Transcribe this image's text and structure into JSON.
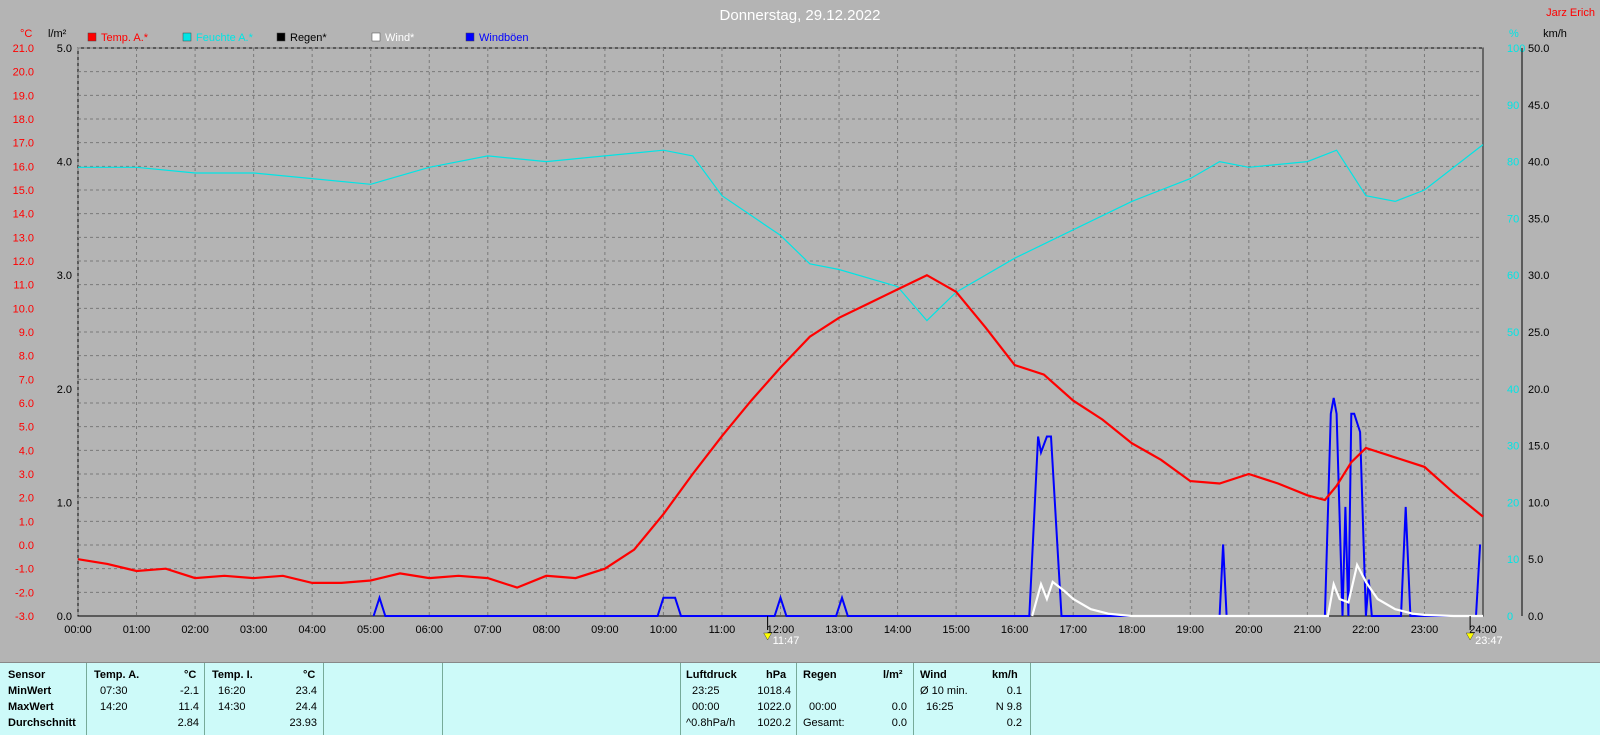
{
  "header": {
    "title": "Donnerstag, 29.12.2022",
    "author": "Jarz Erich"
  },
  "units": {
    "temp": "°C",
    "rain": "l/m²",
    "humidity": "%",
    "wind": "km/h"
  },
  "legend": [
    {
      "label": "Temp. A.*",
      "color": "#ff0000"
    },
    {
      "label": "Feuchte A.*",
      "color": "#00e5e5"
    },
    {
      "label": "Regen*",
      "color": "#000000"
    },
    {
      "label": "Wind*",
      "color": "#ffffff"
    },
    {
      "label": "Windböen",
      "color": "#0000ff"
    }
  ],
  "markers": {
    "min": "11:47",
    "max": "23:47"
  },
  "chart_data": {
    "type": "line",
    "x_ticks": [
      "00:00",
      "01:00",
      "02:00",
      "03:00",
      "04:00",
      "05:00",
      "06:00",
      "07:00",
      "08:00",
      "09:00",
      "10:00",
      "11:00",
      "12:00",
      "13:00",
      "14:00",
      "15:00",
      "16:00",
      "17:00",
      "18:00",
      "19:00",
      "20:00",
      "21:00",
      "22:00",
      "23:00",
      "24:00"
    ],
    "temp_ticks": [
      "21.0",
      "20.0",
      "19.0",
      "18.0",
      "17.0",
      "16.0",
      "15.0",
      "14.0",
      "13.0",
      "12.0",
      "11.0",
      "10.0",
      "9.0",
      "8.0",
      "7.0",
      "6.0",
      "5.0",
      "4.0",
      "3.0",
      "2.0",
      "1.0",
      "0.0",
      "-1.0",
      "-2.0",
      "-3.0"
    ],
    "rain_ticks": [
      "5.0",
      "4.0",
      "3.0",
      "2.0",
      "1.0",
      "0.0"
    ],
    "humidity_ticks": [
      "100",
      "90",
      "80",
      "70",
      "60",
      "50",
      "40",
      "30",
      "20",
      "10",
      "0"
    ],
    "wind_ticks": [
      "50.0",
      "45.0",
      "40.0",
      "35.0",
      "30.0",
      "25.0",
      "20.0",
      "15.0",
      "10.0",
      "5.0",
      "0.0"
    ],
    "temp_range": [
      -3,
      21
    ],
    "humidity_range": [
      0,
      100
    ],
    "wind_range": [
      0,
      50
    ],
    "series": [
      {
        "name": "Temp. A.*",
        "color": "#ff0000",
        "x": [
          0,
          0.5,
          1,
          1.5,
          2,
          2.5,
          3,
          3.5,
          4,
          4.5,
          5,
          5.5,
          6,
          6.5,
          7,
          7.5,
          8,
          8.5,
          9,
          9.5,
          10,
          10.5,
          11,
          11.5,
          12,
          12.5,
          13,
          13.5,
          14,
          14.5,
          15,
          15.5,
          16,
          16.5,
          17,
          17.5,
          18,
          18.5,
          19,
          19.5,
          20,
          20.5,
          21,
          21.3,
          21.5,
          21.75,
          22,
          22.5,
          23,
          23.5,
          24
        ],
        "y": [
          -0.6,
          -0.8,
          -1.1,
          -1.0,
          -1.4,
          -1.3,
          -1.4,
          -1.3,
          -1.6,
          -1.6,
          -1.5,
          -1.2,
          -1.4,
          -1.3,
          -1.4,
          -1.8,
          -1.3,
          -1.4,
          -1.0,
          -0.2,
          1.3,
          3.0,
          4.6,
          6.1,
          7.5,
          8.8,
          9.6,
          10.2,
          10.8,
          11.4,
          10.7,
          9.2,
          7.6,
          7.2,
          6.1,
          5.3,
          4.3,
          3.6,
          2.7,
          2.6,
          3.0,
          2.6,
          2.1,
          1.9,
          2.5,
          3.5,
          4.1,
          3.7,
          3.3,
          2.2,
          1.2
        ]
      },
      {
        "name": "Feuchte A.*",
        "color": "#00e5e5",
        "x": [
          0,
          1,
          2,
          3,
          4,
          5,
          6,
          7,
          8,
          9,
          10,
          10.5,
          11,
          12,
          12.5,
          13,
          14,
          14.5,
          15,
          16,
          17,
          18,
          19,
          19.5,
          20,
          21,
          21.5,
          22,
          22.5,
          23,
          24
        ],
        "y": [
          79,
          79,
          78,
          78,
          77,
          76,
          79,
          81,
          80,
          81,
          82,
          81,
          74,
          67,
          62,
          61,
          58,
          52,
          57,
          63,
          68,
          73,
          77,
          80,
          79,
          80,
          82,
          74,
          73,
          75,
          83
        ]
      },
      {
        "name": "Wind*",
        "color": "#ffffff",
        "x": [
          16.3,
          16.45,
          16.55,
          16.65,
          16.85,
          17,
          17.3,
          17.6,
          18,
          21.35,
          21.45,
          21.55,
          21.7,
          21.85,
          22,
          22.2,
          22.5,
          22.8,
          23,
          23.5,
          24
        ],
        "y": [
          0,
          2.8,
          1.5,
          3,
          2.2,
          1.5,
          0.6,
          0.2,
          0,
          0,
          2.8,
          1.5,
          1.2,
          4.5,
          3,
          1.5,
          0.6,
          0.2,
          0.1,
          0,
          0
        ]
      },
      {
        "name": "Windböen",
        "color": "#0000ff",
        "x": [
          5.05,
          5.15,
          5.25,
          9.9,
          10.0,
          10.2,
          10.3,
          11.9,
          12.0,
          12.1,
          12.95,
          13.05,
          13.15,
          16.25,
          16.4,
          16.45,
          16.55,
          16.62,
          16.8,
          19.5,
          19.56,
          19.62,
          21.3,
          21.4,
          21.45,
          21.5,
          21.6,
          21.65,
          21.7,
          21.75,
          21.8,
          21.9,
          22.0,
          22.05,
          22.1,
          22.15,
          22.2,
          22.6,
          22.68,
          22.76,
          23.88,
          23.95
        ],
        "y": [
          0,
          1.6,
          0,
          0,
          1.6,
          1.6,
          0,
          0,
          1.6,
          0,
          0,
          1.6,
          0,
          0,
          15.8,
          14.4,
          15.8,
          15.8,
          0,
          0,
          6.3,
          0,
          0,
          17.8,
          19.2,
          17.8,
          0,
          9.6,
          0,
          17.8,
          17.8,
          16.2,
          0,
          3.2,
          0,
          0,
          0,
          0,
          9.6,
          0,
          0,
          6.3
        ]
      },
      {
        "name": "Regen*",
        "color": "#000000",
        "x": [
          0,
          24
        ],
        "y": [
          0,
          0
        ]
      }
    ]
  },
  "stats": {
    "sensor": {
      "title": "Sensor",
      "min": "MinWert",
      "max": "MaxWert",
      "avg": "Durchschnitt"
    },
    "temp_a": {
      "title": "Temp. A.",
      "unit": "°C",
      "min_time": "07:30",
      "min_val": "-2.1",
      "max_time": "14:20",
      "max_val": "11.4",
      "avg": "2.84"
    },
    "temp_i": {
      "title": "Temp. I.",
      "unit": "°C",
      "min_time": "16:20",
      "min_val": "23.4",
      "max_time": "14:30",
      "max_val": "24.4",
      "avg": "23.93"
    },
    "luftdruck": {
      "title": "Luftdruck",
      "unit": "hPa",
      "r1_time": "23:25",
      "r1_val": "1018.4",
      "r2_time": "00:00",
      "r2_val": "1022.0",
      "r3_label": "^0.8hPa/h",
      "r3_val": "1020.2"
    },
    "regen": {
      "title": "Regen",
      "unit": "l/m²",
      "r2_time": "00:00",
      "r2_val": "0.0",
      "r3_label": "Gesamt:",
      "r3_val": "0.0"
    },
    "wind": {
      "title": "Wind",
      "unit": "km/h",
      "r1_label": "Ø 10 min.",
      "r1_val": "0.1",
      "r2_time": "16:25",
      "r2_val": "N 9.8",
      "r3_val": "0.2"
    }
  }
}
